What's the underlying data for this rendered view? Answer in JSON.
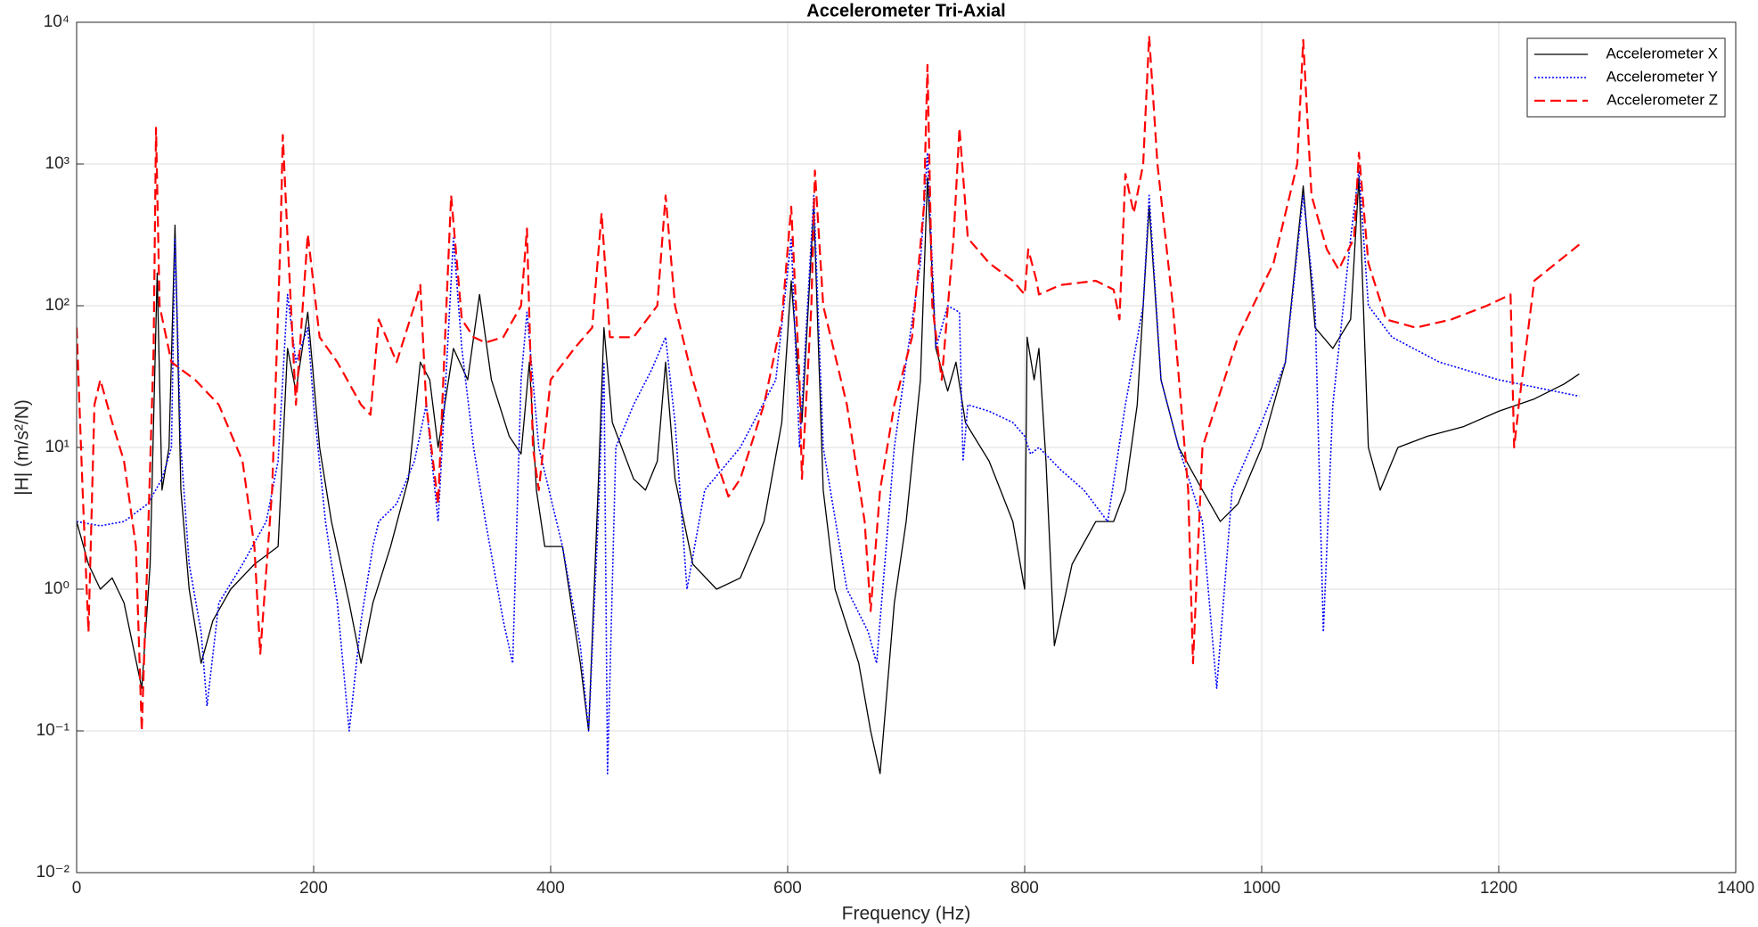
{
  "chart_data": {
    "type": "line",
    "title": "Accelerometer Tri-Axial",
    "xlabel": "Frequency (Hz)",
    "ylabel": "|H|  (m/s²/N)",
    "log_y": true,
    "grid": true,
    "legend": "northeast",
    "xlim": [
      0,
      1400
    ],
    "xticks": [
      0,
      200,
      400,
      600,
      800,
      1000,
      1200,
      1400
    ],
    "ylim": [
      0.01,
      10000
    ],
    "yticks": [
      {
        "value": 0.01,
        "label": "10⁻²"
      },
      {
        "value": 0.1,
        "label": "10⁻¹"
      },
      {
        "value": 1,
        "label": "10⁰"
      },
      {
        "value": 10,
        "label": "10¹"
      },
      {
        "value": 100,
        "label": "10²"
      },
      {
        "value": 1000,
        "label": "10³"
      },
      {
        "value": 10000,
        "label": "10⁴"
      }
    ],
    "series": [
      {
        "name": "Accelerometer X",
        "color": "#000000",
        "style": "solid",
        "x": [
          0,
          10,
          20,
          30,
          40,
          55,
          62,
          68,
          72,
          78,
          83,
          88,
          95,
          105,
          115,
          130,
          150,
          170,
          178,
          185,
          195,
          205,
          215,
          230,
          240,
          250,
          265,
          280,
          290,
          298,
          305,
          318,
          330,
          340,
          350,
          365,
          375,
          382,
          388,
          395,
          410,
          425,
          432,
          440,
          445,
          452,
          470,
          480,
          490,
          497,
          505,
          520,
          540,
          560,
          580,
          595,
          603,
          612,
          622,
          630,
          640,
          660,
          670,
          678,
          690,
          700,
          712,
          718,
          725,
          735,
          742,
          750,
          770,
          790,
          800,
          802,
          808,
          812,
          818,
          825,
          840,
          860,
          875,
          885,
          895,
          905,
          915,
          930,
          950,
          965,
          980,
          1000,
          1020,
          1035,
          1045,
          1060,
          1075,
          1082,
          1090,
          1100,
          1115,
          1140,
          1170,
          1200,
          1230,
          1255,
          1268
        ],
        "values": [
          3,
          1.5,
          1,
          1.2,
          0.8,
          0.2,
          1.5,
          170,
          5,
          10,
          370,
          5,
          1,
          0.3,
          0.6,
          1,
          1.5,
          2,
          50,
          25,
          90,
          10,
          3,
          0.8,
          0.3,
          0.8,
          2,
          6,
          40,
          30,
          10,
          50,
          30,
          120,
          30,
          12,
          9,
          40,
          5,
          2,
          2,
          0.3,
          0.1,
          5,
          70,
          15,
          6,
          5,
          8,
          40,
          6,
          1.5,
          1,
          1.2,
          3,
          15,
          150,
          15,
          500,
          5,
          1,
          0.3,
          0.1,
          0.05,
          0.8,
          3,
          30,
          800,
          50,
          25,
          40,
          15,
          8,
          3,
          1,
          60,
          30,
          50,
          8,
          0.4,
          1.5,
          3,
          3,
          5,
          20,
          500,
          30,
          10,
          5,
          3,
          4,
          10,
          40,
          700,
          70,
          50,
          80,
          800,
          10,
          5,
          10,
          12,
          14,
          18,
          22,
          28,
          33
        ]
      },
      {
        "name": "Accelerometer Y",
        "color": "#0000ff",
        "style": "dotted",
        "x": [
          0,
          20,
          40,
          60,
          72,
          80,
          83,
          88,
          95,
          105,
          110,
          120,
          140,
          160,
          170,
          178,
          185,
          195,
          200,
          210,
          220,
          230,
          240,
          250,
          255,
          270,
          285,
          295,
          305,
          318,
          325,
          335,
          345,
          360,
          368,
          375,
          380,
          390,
          410,
          425,
          432,
          440,
          445,
          448,
          455,
          470,
          485,
          497,
          505,
          515,
          530,
          560,
          590,
          603,
          610,
          622,
          630,
          650,
          668,
          675,
          690,
          700,
          712,
          718,
          725,
          735,
          745,
          748,
          752,
          770,
          790,
          800,
          805,
          812,
          830,
          850,
          870,
          885,
          900,
          905,
          915,
          930,
          950,
          962,
          975,
          1000,
          1020,
          1035,
          1045,
          1052,
          1060,
          1075,
          1082,
          1090,
          1110,
          1150,
          1200,
          1268
        ],
        "values": [
          3,
          2.8,
          3,
          4,
          6,
          10,
          300,
          10,
          1.5,
          0.5,
          0.15,
          0.8,
          1.5,
          3,
          8,
          120,
          40,
          70,
          20,
          3,
          0.8,
          0.1,
          0.6,
          2,
          3,
          4,
          8,
          20,
          3,
          300,
          50,
          10,
          3,
          0.6,
          0.3,
          30,
          90,
          10,
          2,
          0.4,
          0.1,
          3,
          40,
          0.05,
          10,
          20,
          35,
          60,
          15,
          1,
          5,
          10,
          30,
          300,
          10,
          600,
          10,
          1,
          0.5,
          0.3,
          10,
          40,
          200,
          1200,
          50,
          100,
          90,
          8,
          20,
          18,
          15,
          12,
          9,
          10,
          7,
          5,
          3,
          20,
          100,
          600,
          30,
          10,
          3,
          0.2,
          5,
          15,
          40,
          600,
          100,
          0.5,
          20,
          300,
          900,
          100,
          60,
          40,
          30,
          23
        ]
      },
      {
        "name": "Accelerometer Z",
        "color": "#ff0000",
        "style": "dashed",
        "x": [
          0,
          5,
          10,
          15,
          20,
          30,
          40,
          50,
          55,
          60,
          65,
          67,
          70,
          80,
          100,
          120,
          140,
          150,
          155,
          165,
          172,
          174,
          178,
          185,
          195,
          205,
          220,
          240,
          248,
          255,
          270,
          285,
          290,
          295,
          305,
          312,
          316,
          325,
          335,
          345,
          360,
          375,
          380,
          385,
          390,
          400,
          420,
          435,
          443,
          450,
          470,
          490,
          497,
          505,
          520,
          540,
          550,
          560,
          580,
          595,
          603,
          610,
          612,
          620,
          623,
          630,
          650,
          665,
          670,
          678,
          690,
          705,
          715,
          718,
          722,
          730,
          740,
          745,
          752,
          770,
          790,
          800,
          803,
          810,
          812,
          830,
          860,
          875,
          880,
          885,
          892,
          900,
          905,
          912,
          925,
          938,
          942,
          950,
          980,
          1010,
          1030,
          1035,
          1042,
          1055,
          1065,
          1078,
          1082,
          1090,
          1105,
          1130,
          1160,
          1190,
          1210,
          1213,
          1217,
          1230,
          1268
        ],
        "values": [
          70,
          5,
          0.5,
          20,
          30,
          15,
          8,
          2,
          0.1,
          2,
          50,
          1800,
          100,
          40,
          30,
          20,
          8,
          2,
          0.35,
          5,
          300,
          1600,
          300,
          20,
          320,
          60,
          40,
          20,
          17,
          80,
          40,
          100,
          140,
          20,
          4,
          100,
          600,
          80,
          60,
          55,
          60,
          100,
          350,
          10,
          5,
          30,
          50,
          70,
          450,
          60,
          60,
          100,
          600,
          100,
          30,
          8,
          4.5,
          6,
          20,
          80,
          500,
          30,
          6,
          100,
          900,
          100,
          20,
          3,
          0.7,
          5,
          20,
          60,
          500,
          5000,
          100,
          30,
          300,
          1800,
          300,
          200,
          150,
          120,
          250,
          150,
          120,
          140,
          150,
          130,
          80,
          850,
          450,
          1000,
          8000,
          1000,
          100,
          5,
          0.3,
          10,
          60,
          200,
          1000,
          7500,
          600,
          250,
          180,
          300,
          1200,
          200,
          80,
          70,
          80,
          100,
          120,
          10,
          20,
          150,
          270
        ]
      }
    ]
  }
}
